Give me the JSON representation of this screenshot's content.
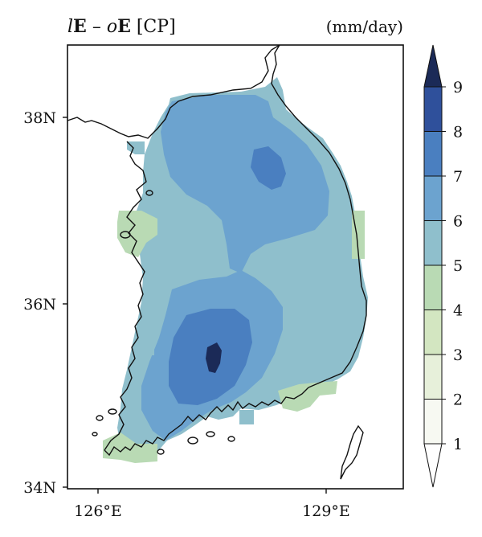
{
  "title": {
    "parts": [
      {
        "text": "l",
        "style": "italic"
      },
      {
        "text": "E",
        "style": "bold"
      },
      {
        "text": " – ",
        "style": "normal"
      },
      {
        "text": "o",
        "style": "italic"
      },
      {
        "text": "E",
        "style": "bold"
      },
      {
        "text": " [CP]",
        "style": "normal"
      }
    ]
  },
  "units": "(mm/day)",
  "lat_labels": [
    "38N",
    "36N",
    "34N"
  ],
  "lon_labels": [
    "126°E",
    "129°E"
  ],
  "colorbar": {
    "tick_labels": [
      "1",
      "2",
      "3",
      "4",
      "5",
      "6",
      "7",
      "8",
      "9"
    ],
    "colors": [
      "#f7f9f2",
      "#e7f0da",
      "#d3e6c1",
      "#b9dab4",
      "#8fbfcc",
      "#6ca3cf",
      "#4a7fc0",
      "#2f509b",
      "#1b2a57"
    ],
    "extend": "both"
  },
  "field_colors": {
    "level_4_5": "#b9dab4",
    "level_5_6": "#8fbfcc",
    "level_6_7": "#6ca3cf",
    "level_7_8": "#4a7fc0",
    "level_8_9": "#2f509b",
    "level_9_plus": "#1b2a57"
  }
}
